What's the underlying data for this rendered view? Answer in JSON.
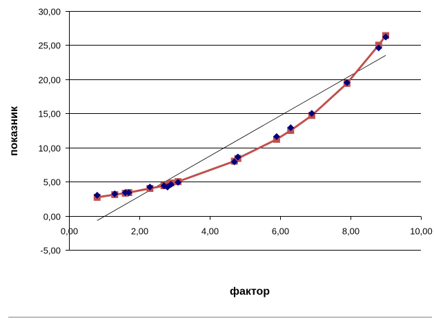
{
  "chart_data": {
    "type": "scatter",
    "title": "",
    "xlabel": "фактор",
    "ylabel": "показник",
    "xlim": [
      0,
      10
    ],
    "ylim": [
      -5,
      30
    ],
    "x_ticks": [
      "0,00",
      "2,00",
      "4,00",
      "6,00",
      "8,00",
      "10,00"
    ],
    "y_ticks": [
      "-5,00",
      "0,00",
      "5,00",
      "10,00",
      "15,00",
      "20,00",
      "25,00",
      "30,00"
    ],
    "grid": "horizontal",
    "legend": "none",
    "series": [
      {
        "marker": "diamond",
        "color": "#000080",
        "x": [
          0.8,
          1.3,
          1.6,
          1.7,
          2.3,
          2.7,
          2.8,
          2.9,
          3.1,
          4.7,
          4.8,
          5.9,
          6.3,
          6.9,
          7.9,
          8.8,
          9.0
        ],
        "y": [
          3.0,
          3.2,
          3.4,
          3.4,
          4.2,
          4.4,
          4.2,
          4.6,
          4.9,
          7.9,
          8.6,
          11.6,
          12.9,
          15.0,
          19.5,
          24.6,
          26.2
        ]
      },
      {
        "marker": "square",
        "line": true,
        "color": "#c0504d",
        "x": [
          0.8,
          1.3,
          1.6,
          1.7,
          2.3,
          2.7,
          2.8,
          2.9,
          3.1,
          4.7,
          4.8,
          5.9,
          6.3,
          6.9,
          7.9,
          8.8,
          9.0
        ],
        "y": [
          2.7,
          3.1,
          3.3,
          3.4,
          4.0,
          4.4,
          4.6,
          4.8,
          5.0,
          8.0,
          8.4,
          11.2,
          12.5,
          14.7,
          19.4,
          25.0,
          26.4
        ]
      }
    ],
    "trendline": {
      "type": "linear",
      "x": [
        0.8,
        9.0
      ],
      "y": [
        -0.7,
        23.5
      ],
      "color": "#000000"
    }
  }
}
